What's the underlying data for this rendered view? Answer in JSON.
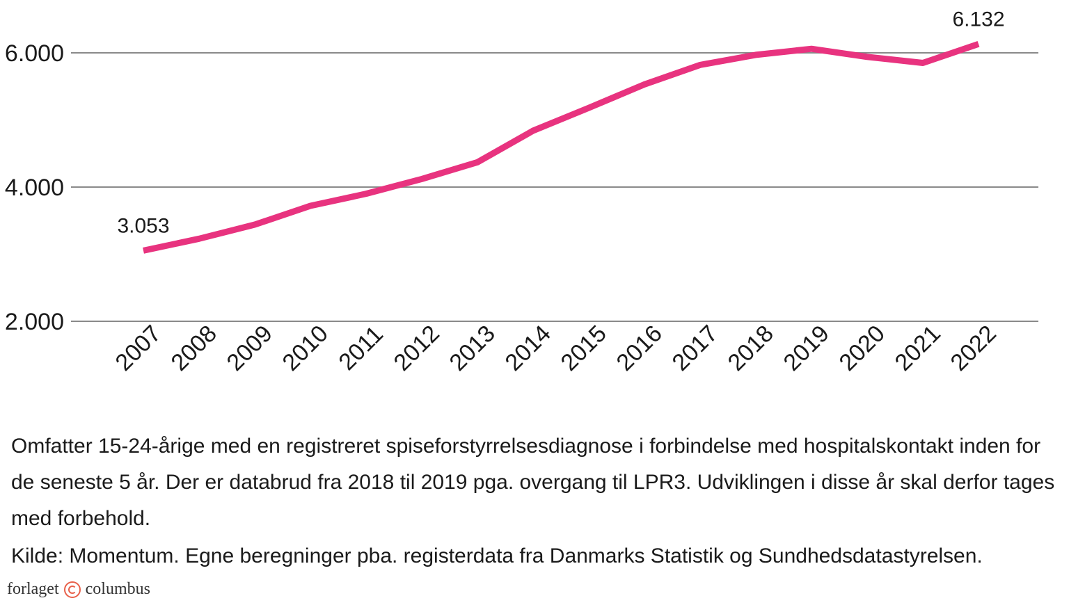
{
  "chart_data": {
    "type": "line",
    "title": "",
    "xlabel": "",
    "ylabel": "",
    "categories": [
      "2007",
      "2008",
      "2009",
      "2010",
      "2011",
      "2012",
      "2013",
      "2014",
      "2015",
      "2016",
      "2017",
      "2018",
      "2019",
      "2020",
      "2021",
      "2022"
    ],
    "series": [
      {
        "values": [
          3053,
          3230,
          3440,
          3720,
          3900,
          4120,
          4370,
          4840,
          5180,
          5530,
          5820,
          5970,
          6060,
          5940,
          5850,
          6132
        ]
      }
    ],
    "y_ticks": [
      2000,
      4000,
      6000
    ],
    "y_tick_labels": [
      "2.000",
      "4.000",
      "6.000"
    ],
    "ylim": [
      2000,
      6400
    ],
    "grid": "horizontal",
    "legend": "none",
    "annotations": [
      {
        "index": 0,
        "text": "3.053"
      },
      {
        "index": 15,
        "text": "6.132"
      }
    ],
    "line_color": "#e8337f",
    "grid_color": "#8a8a8a"
  },
  "footer": {
    "note": "Omfatter 15-24-årige med en registreret spiseforstyrrelsesdiagnose i forbindelse med hospitalskontakt inden for de seneste 5 år. Der er databrud fra 2018 til 2019 pga. overgang til LPR3. Udviklingen i disse år skal derfor tages med forbehold.",
    "source": "Kilde: Momentum. Egne beregninger pba. registerdata fra Danmarks Statistik og Sundhedsdatastyrelsen.",
    "brand_left": "forlaget",
    "brand_right": "columbus"
  }
}
